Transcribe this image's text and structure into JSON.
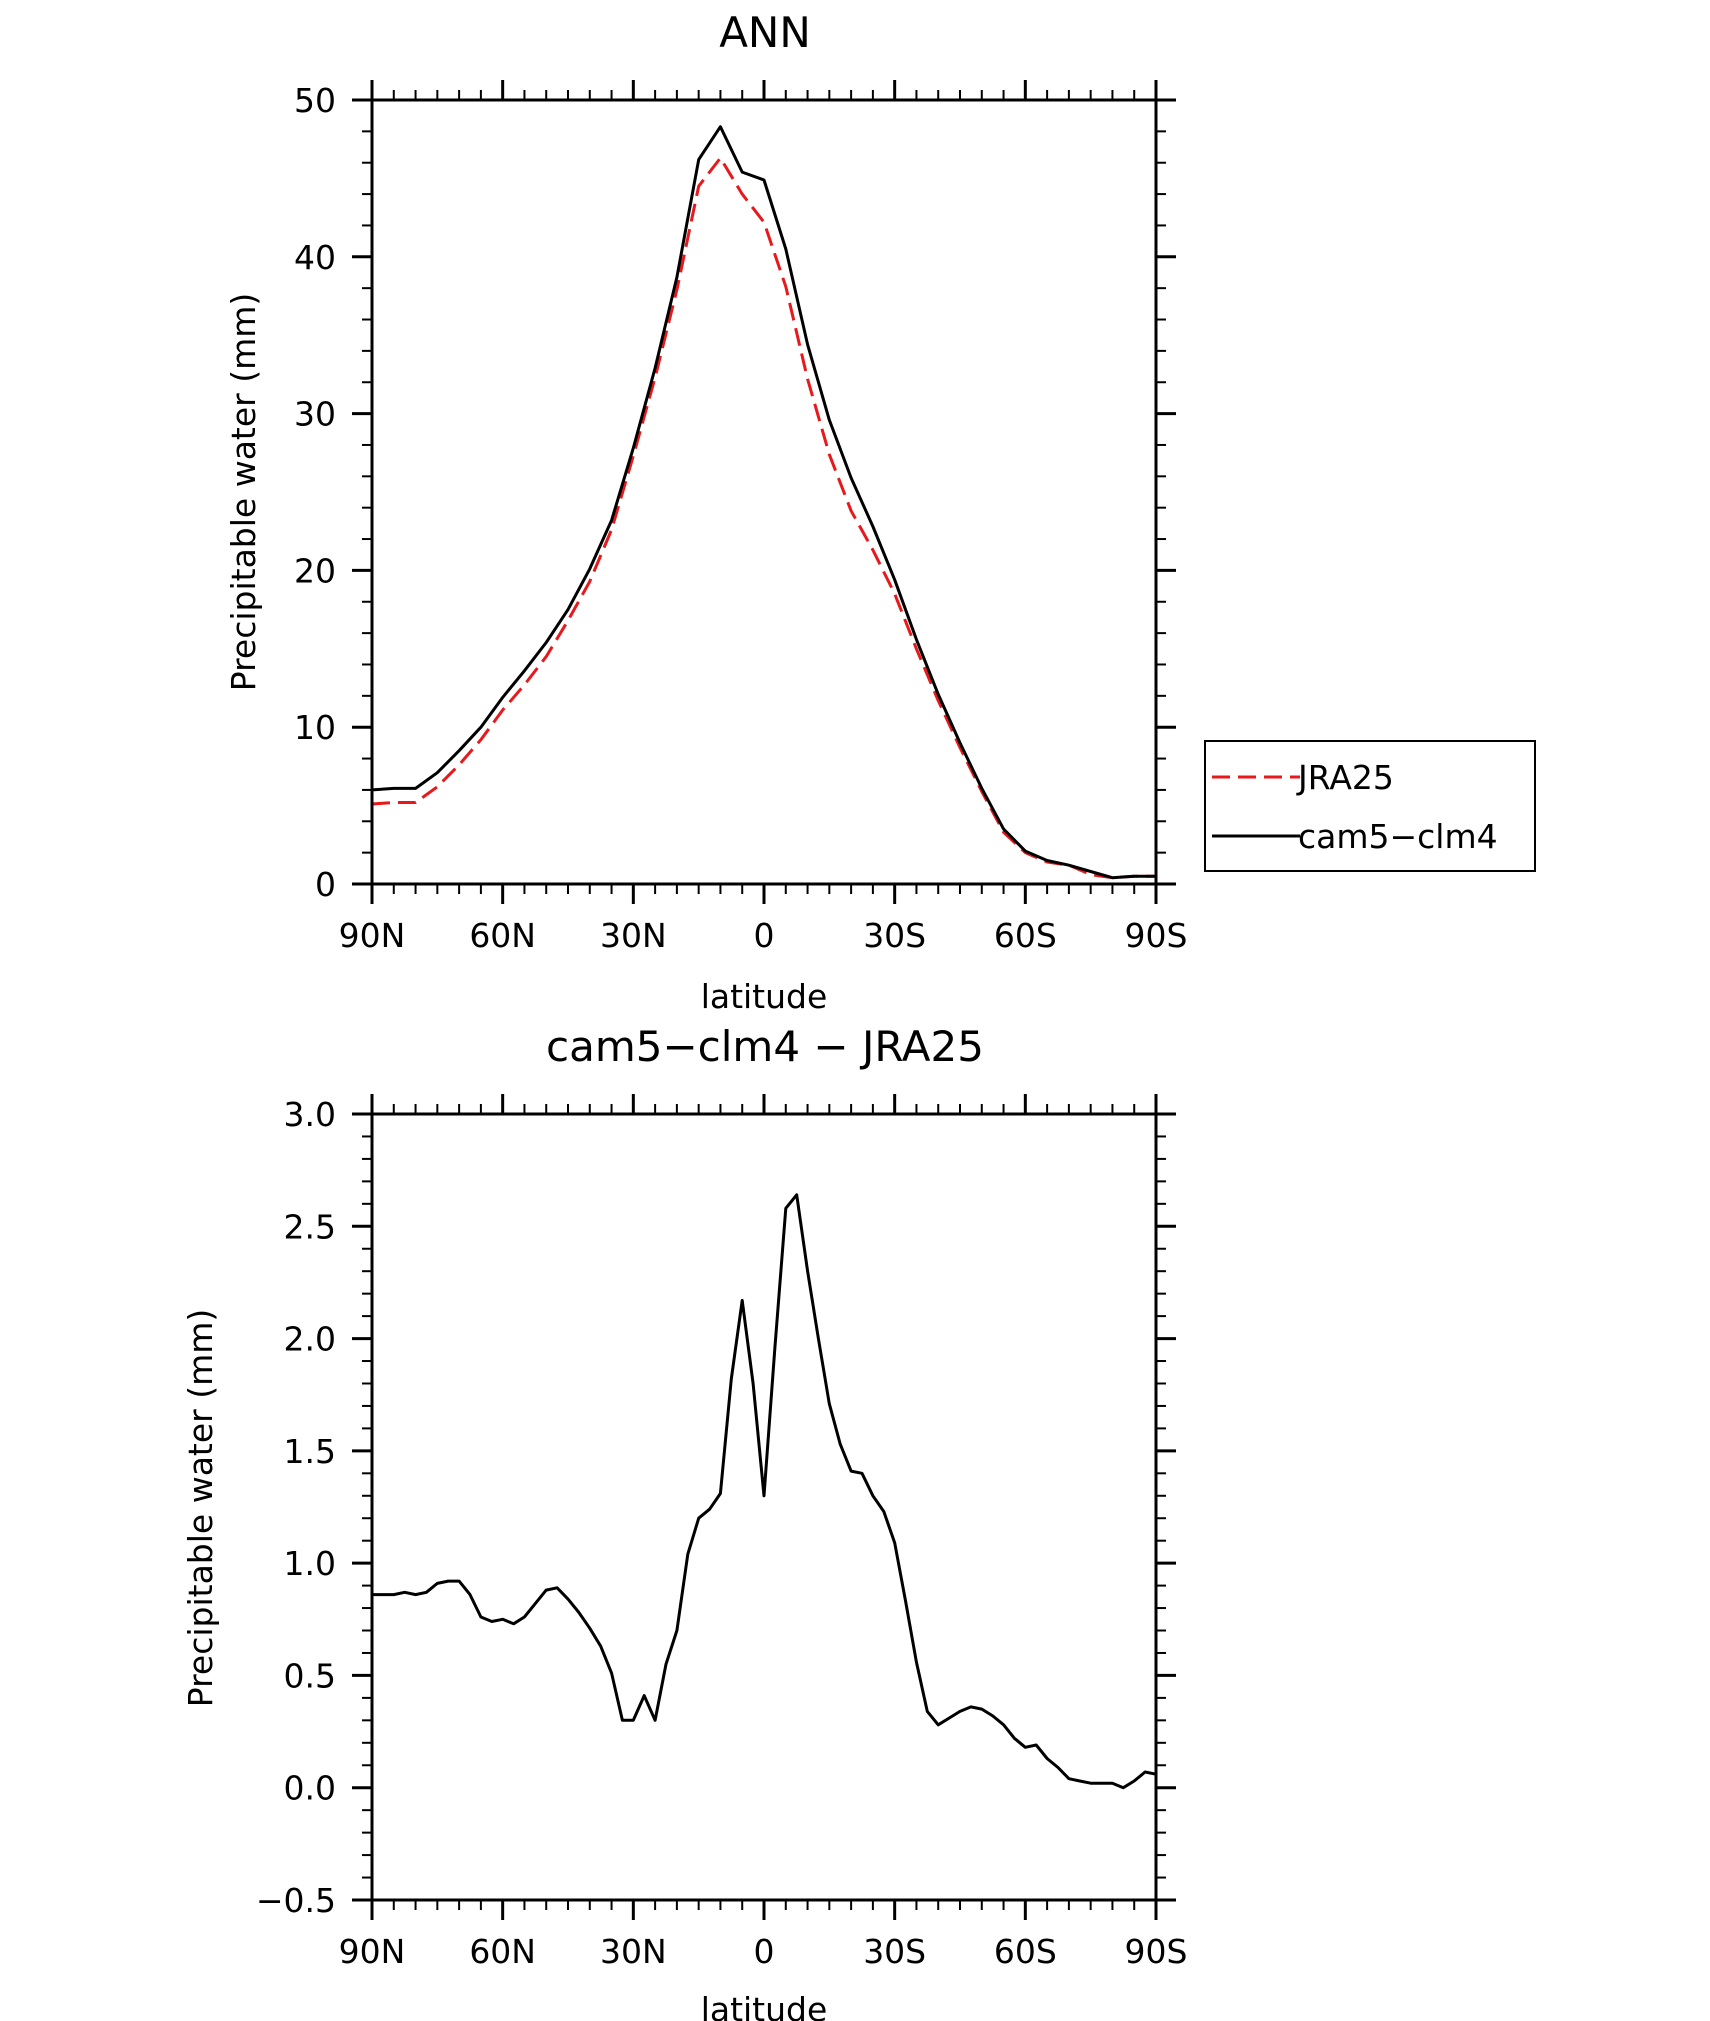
{
  "chart_data": [
    {
      "type": "line",
      "title": "ANN",
      "xlabel": "latitude",
      "ylabel": "Precipitable water (mm)",
      "xlim": [
        90,
        -90
      ],
      "ylim": [
        0,
        50
      ],
      "x_ticks": [
        90,
        60,
        30,
        0,
        -30,
        -60,
        -90
      ],
      "x_tick_labels": [
        "90N",
        "60N",
        "30N",
        "0",
        "30S",
        "60S",
        "90S"
      ],
      "y_ticks": [
        0,
        10,
        20,
        30,
        40,
        50
      ],
      "y_tick_labels": [
        "0",
        "10",
        "20",
        "30",
        "40",
        "50"
      ],
      "legend": {
        "position": "right-middle",
        "entries": [
          "JRA25",
          "cam5−clm4"
        ]
      },
      "series": [
        {
          "name": "JRA25",
          "color": "#e8191c",
          "style": "dashed",
          "x": [
            90,
            85,
            80,
            75,
            70,
            65,
            60,
            55,
            50,
            45,
            40,
            35,
            30,
            25,
            20,
            15,
            10,
            5,
            0,
            -5,
            -10,
            -15,
            -20,
            -25,
            -30,
            -35,
            -40,
            -45,
            -50,
            -55,
            -60,
            -65,
            -70,
            -75,
            -80,
            -85,
            -90
          ],
          "values": [
            5.1,
            5.2,
            5.2,
            6.2,
            7.6,
            9.2,
            11.1,
            12.7,
            14.5,
            16.8,
            19.3,
            22.6,
            27.3,
            32.3,
            37.9,
            44.5,
            46.3,
            44.0,
            42.2,
            38.1,
            32.2,
            27.4,
            23.8,
            21.3,
            18.5,
            15.0,
            11.7,
            8.7,
            5.9,
            3.3,
            2.0,
            1.4,
            1.2,
            0.6,
            0.4,
            0.5,
            0.5
          ]
        },
        {
          "name": "cam5−clm4",
          "color": "#000000",
          "style": "solid",
          "x": [
            90,
            85,
            80,
            75,
            70,
            65,
            60,
            55,
            50,
            45,
            40,
            35,
            30,
            25,
            20,
            15,
            10,
            5,
            0,
            -5,
            -10,
            -15,
            -20,
            -25,
            -30,
            -35,
            -40,
            -45,
            -50,
            -55,
            -60,
            -65,
            -70,
            -75,
            -80,
            -85,
            -90
          ],
          "values": [
            6.0,
            6.1,
            6.1,
            7.1,
            8.5,
            10.0,
            11.9,
            13.6,
            15.4,
            17.5,
            20.1,
            23.2,
            27.8,
            32.9,
            38.7,
            46.2,
            48.3,
            45.4,
            44.9,
            40.5,
            34.4,
            29.6,
            25.9,
            22.8,
            19.4,
            15.6,
            12.1,
            9.0,
            6.1,
            3.5,
            2.1,
            1.5,
            1.2,
            0.8,
            0.4,
            0.5,
            0.5
          ]
        }
      ]
    },
    {
      "type": "line",
      "title": "cam5−clm4 − JRA25",
      "xlabel": "latitude",
      "ylabel": "Precipitable water (mm)",
      "xlim": [
        90,
        -90
      ],
      "ylim": [
        -0.5,
        3.0
      ],
      "x_ticks": [
        90,
        60,
        30,
        0,
        -30,
        -60,
        -90
      ],
      "x_tick_labels": [
        "90N",
        "60N",
        "30N",
        "0",
        "30S",
        "60S",
        "90S"
      ],
      "y_ticks": [
        -0.5,
        0.0,
        0.5,
        1.0,
        1.5,
        2.0,
        2.5,
        3.0
      ],
      "y_tick_labels": [
        "−0.5",
        "0.0",
        "0.5",
        "1.0",
        "1.5",
        "2.0",
        "2.5",
        "3.0"
      ],
      "series": [
        {
          "name": "cam5−clm4 − JRA25",
          "color": "#000000",
          "style": "solid",
          "x": [
            90,
            87.5,
            85,
            82.5,
            80,
            77.5,
            75,
            72.5,
            70,
            67.5,
            65,
            62.5,
            60,
            57.5,
            55,
            52.5,
            50,
            47.5,
            45,
            42.5,
            40,
            37.5,
            35,
            32.5,
            30,
            27.5,
            25,
            22.5,
            20,
            17.5,
            15,
            12.5,
            10,
            7.5,
            5,
            2.5,
            0,
            -2.5,
            -5,
            -7.5,
            -10,
            -12.5,
            -15,
            -17.5,
            -20,
            -22.5,
            -25,
            -27.5,
            -30,
            -32.5,
            -35,
            -37.5,
            -40,
            -42.5,
            -45,
            -47.5,
            -50,
            -52.5,
            -55,
            -57.5,
            -60,
            -62.5,
            -65,
            -67.5,
            -70,
            -72.5,
            -75,
            -77.5,
            -80,
            -82.5,
            -85,
            -87.5,
            -90
          ],
          "values": [
            0.86,
            0.86,
            0.86,
            0.87,
            0.86,
            0.87,
            0.91,
            0.92,
            0.92,
            0.86,
            0.76,
            0.74,
            0.75,
            0.73,
            0.76,
            0.82,
            0.88,
            0.89,
            0.84,
            0.78,
            0.71,
            0.63,
            0.51,
            0.3,
            0.3,
            0.41,
            0.3,
            0.55,
            0.7,
            1.04,
            1.2,
            1.24,
            1.31,
            1.82,
            2.17,
            1.8,
            1.3,
            1.96,
            2.58,
            2.64,
            2.3,
            2.0,
            1.71,
            1.53,
            1.41,
            1.4,
            1.3,
            1.23,
            1.09,
            0.83,
            0.56,
            0.34,
            0.28,
            0.31,
            0.34,
            0.36,
            0.35,
            0.32,
            0.28,
            0.22,
            0.18,
            0.19,
            0.13,
            0.09,
            0.04,
            0.03,
            0.02,
            0.02,
            0.02,
            0.0,
            0.03,
            0.07,
            0.06
          ]
        }
      ]
    }
  ]
}
